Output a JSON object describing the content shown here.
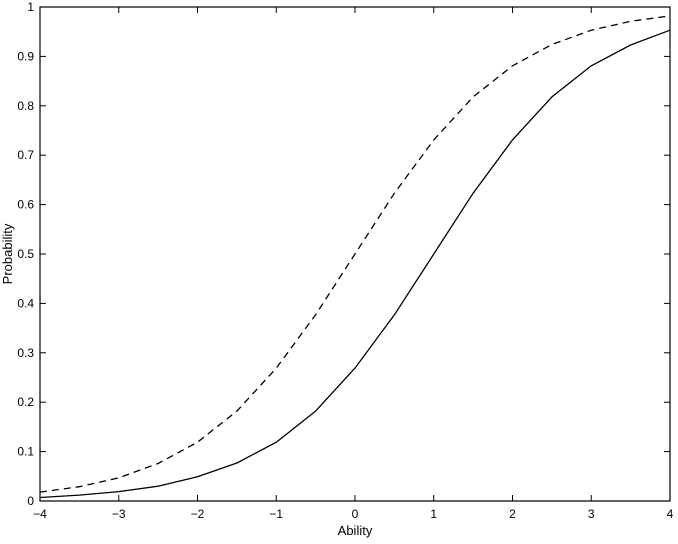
{
  "chart_data": {
    "type": "line",
    "title": "",
    "xlabel": "Ability",
    "ylabel": "Probability",
    "xlim": [
      -4,
      4
    ],
    "ylim": [
      0,
      1
    ],
    "xticks": [
      -4,
      -3,
      -2,
      -1,
      0,
      1,
      2,
      3,
      4
    ],
    "xtick_labels": [
      "−4",
      "−3",
      "−2",
      "−1",
      "0",
      "1",
      "2",
      "3",
      "4"
    ],
    "yticks": [
      0,
      0.1,
      0.2,
      0.3,
      0.4,
      0.5,
      0.6,
      0.7,
      0.8,
      0.9,
      1
    ],
    "ytick_labels": [
      "0",
      "0.1",
      "0.2",
      "0.3",
      "0.4",
      "0.5",
      "0.6",
      "0.7",
      "0.8",
      "0.9",
      "1"
    ],
    "grid": false,
    "legend": "none",
    "x": [
      -4,
      -3.5,
      -3,
      -2.5,
      -2,
      -1.5,
      -1,
      -0.5,
      0,
      0.5,
      1,
      1.5,
      2,
      2.5,
      3,
      3.5,
      4
    ],
    "series": [
      {
        "style": "solid",
        "color": "#000000",
        "values": [
          0.007,
          0.012,
          0.019,
          0.03,
          0.049,
          0.077,
          0.119,
          0.182,
          0.269,
          0.377,
          0.5,
          0.623,
          0.731,
          0.818,
          0.881,
          0.923,
          0.953
        ]
      },
      {
        "style": "dashed",
        "color": "#000000",
        "values": [
          0.018,
          0.029,
          0.047,
          0.076,
          0.119,
          0.182,
          0.269,
          0.377,
          0.5,
          0.623,
          0.731,
          0.818,
          0.881,
          0.924,
          0.953,
          0.971,
          0.982
        ]
      }
    ]
  }
}
